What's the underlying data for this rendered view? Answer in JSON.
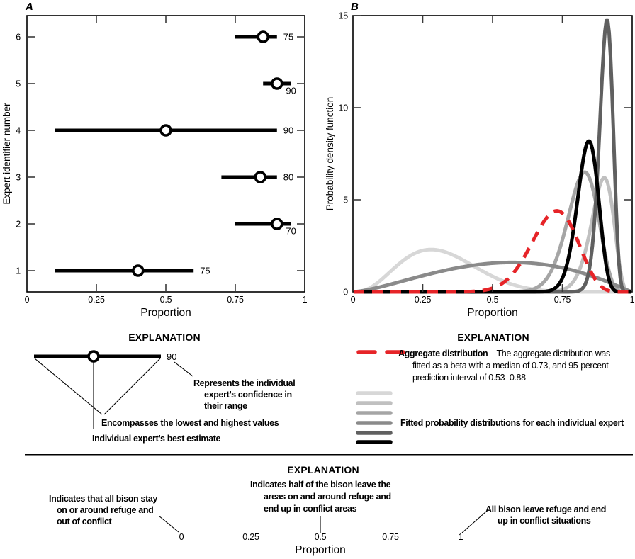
{
  "chart_data": [
    {
      "id": "A",
      "type": "scatter",
      "panel_letter": "A",
      "xlabel": "Proportion",
      "ylabel": "Expert identifier number",
      "xlim": [
        0,
        1
      ],
      "ylim": [
        0.5,
        6.5
      ],
      "x_ticks": [
        0,
        0.25,
        0.5,
        0.75,
        1
      ],
      "x_tick_labels": [
        "0",
        "0.25",
        "0.5",
        "0.75",
        "1"
      ],
      "y_ticks": [
        1,
        2,
        3,
        4,
        5,
        6
      ],
      "y_tick_labels": [
        "1",
        "2",
        "3",
        "4",
        "5",
        "6"
      ],
      "experts": [
        {
          "id": 1,
          "low": 0.1,
          "best": 0.4,
          "high": 0.6,
          "confidence": "75",
          "label_pos": "right"
        },
        {
          "id": 2,
          "low": 0.75,
          "best": 0.9,
          "high": 0.95,
          "confidence": "70",
          "label_pos": "below"
        },
        {
          "id": 3,
          "low": 0.7,
          "best": 0.84,
          "high": 0.9,
          "confidence": "80",
          "label_pos": "right"
        },
        {
          "id": 4,
          "low": 0.1,
          "best": 0.5,
          "high": 0.9,
          "confidence": "90",
          "label_pos": "right"
        },
        {
          "id": 5,
          "low": 0.85,
          "best": 0.9,
          "high": 0.95,
          "confidence": "90",
          "label_pos": "below"
        },
        {
          "id": 6,
          "low": 0.75,
          "best": 0.85,
          "high": 0.9,
          "confidence": "75",
          "label_pos": "right"
        }
      ]
    },
    {
      "id": "B",
      "type": "line",
      "panel_letter": "B",
      "xlabel": "Proportion",
      "ylabel": "Probability density function",
      "xlim": [
        0,
        1
      ],
      "ylim": [
        0,
        15
      ],
      "x_ticks": [
        0,
        0.25,
        0.5,
        0.75,
        1
      ],
      "x_tick_labels": [
        "0",
        "0.25",
        "0.5",
        "0.75",
        "1"
      ],
      "y_ticks": [
        0,
        5,
        10,
        15
      ],
      "y_tick_labels": [
        "0",
        "5",
        "10",
        "15"
      ],
      "curves": [
        {
          "name": "Expert 1 fitted distribution",
          "color": "#d7d7d7",
          "mode": 0.28,
          "peak": 2.3,
          "shape": 10,
          "style": "solid"
        },
        {
          "name": "Expert 2 fitted distribution",
          "color": "#c0c0c0",
          "mode": 0.9,
          "peak": 6.2,
          "shape": 55,
          "style": "solid"
        },
        {
          "name": "Expert 3 fitted distribution",
          "color": "#a5a5a5",
          "mode": 0.83,
          "peak": 6.5,
          "shape": 45,
          "style": "solid"
        },
        {
          "name": "Expert 4 fitted distribution",
          "color": "#8a8a8a",
          "mode": 0.57,
          "peak": 1.6,
          "shape": 2.6,
          "style": "solid"
        },
        {
          "name": "Expert 5 fitted distribution",
          "color": "#606060",
          "mode": 0.91,
          "peak": 14.8,
          "shape": 140,
          "style": "solid"
        },
        {
          "name": "Expert 6 fitted distribution",
          "color": "#000000",
          "mode": 0.845,
          "peak": 8.2,
          "shape": 90,
          "style": "solid"
        },
        {
          "name": "Aggregate distribution",
          "color": "#e62428",
          "mode": 0.73,
          "peak": 4.4,
          "shape": 28,
          "style": "dashed"
        }
      ]
    }
  ],
  "legendA": {
    "title": "EXPLANATION",
    "sample_value": "90",
    "note_confidence_lines": [
      "Represents the individual",
      "expert’s confidence in",
      "their range"
    ],
    "note_range": "Encompasses the lowest and highest values",
    "note_best": "Individual expert’s best estimate"
  },
  "legendB": {
    "title": "EXPLANATION",
    "aggregate_bold": "Aggregate distribution",
    "aggregate_line1_rest": "—The aggregate distribution was",
    "aggregate_line2": "fitted as a beta with a median of 0.73, and 95-percent",
    "aggregate_line3": "prediction interval of 0.53–0.88",
    "fitted_label": "Fitted probability distributions for each individual expert",
    "swatch_colors": [
      "#d7d7d7",
      "#c0c0c0",
      "#a5a5a5",
      "#8a8a8a",
      "#606060",
      "#000000"
    ],
    "aggregate_color": "#e62428"
  },
  "bottom": {
    "title": "EXPLANATION",
    "note_zero_lines": [
      "Indicates that all bison stay",
      "on or around refuge and",
      "out of conflict"
    ],
    "note_half_lines": [
      "Indicates half of the bison leave the",
      "areas on and around refuge and",
      "end up in conflict areas"
    ],
    "note_one_lines": [
      "All bison leave refuge and end",
      "up in conflict situations"
    ],
    "axis_labels": [
      "0",
      "0.25",
      "0.5",
      "0.75",
      "1"
    ],
    "axis_title": "Proportion"
  }
}
